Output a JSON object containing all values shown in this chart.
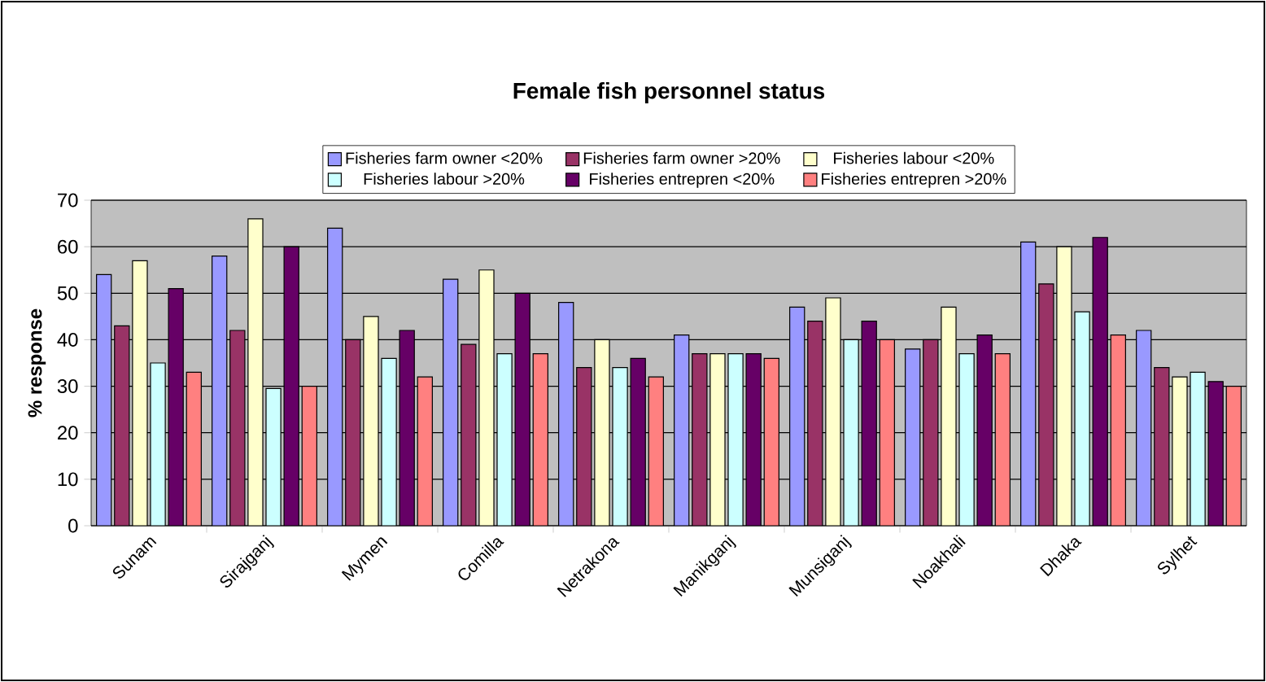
{
  "chart_data": {
    "type": "bar",
    "title": "Female fish personnel status",
    "ylabel": "% response",
    "categories": [
      "Sunam",
      "Sirajganj",
      "Mymen",
      "Comilla",
      "Netrakona",
      "Manikganj",
      "Munsiganj",
      "Noakhali",
      "Dhaka",
      "Sylhet"
    ],
    "series": [
      {
        "name": "Fisheries farm owner <20%",
        "color": "#9999ff",
        "values": [
          54,
          58,
          64,
          53,
          48,
          41,
          47,
          38,
          61,
          42
        ]
      },
      {
        "name": "Fisheries farm owner >20%",
        "color": "#993366",
        "values": [
          43,
          42,
          40,
          39,
          34,
          37,
          44,
          40,
          52,
          34
        ]
      },
      {
        "name": "Fisheries labour <20%",
        "color": "#ffffcc",
        "values": [
          57,
          66,
          45,
          55,
          40,
          37,
          49,
          47,
          60,
          32
        ]
      },
      {
        "name": "Fisheries labour >20%",
        "color": "#ccffff",
        "values": [
          35,
          29.5,
          36,
          37,
          34,
          37,
          40,
          37,
          46,
          33
        ]
      },
      {
        "name": "Fisheries entrepren <20%",
        "color": "#660066",
        "values": [
          51,
          60,
          42,
          50,
          36,
          37,
          44,
          41,
          62,
          31
        ]
      },
      {
        "name": "Fisheries entrepren >20%",
        "color": "#ff8080",
        "values": [
          33,
          30,
          32,
          37,
          32,
          36,
          40,
          37,
          41,
          30
        ]
      }
    ],
    "ylim": [
      0,
      70
    ],
    "yticks": [
      0,
      10,
      20,
      30,
      40,
      50,
      60,
      70
    ],
    "grid": "y",
    "legend": "top"
  }
}
